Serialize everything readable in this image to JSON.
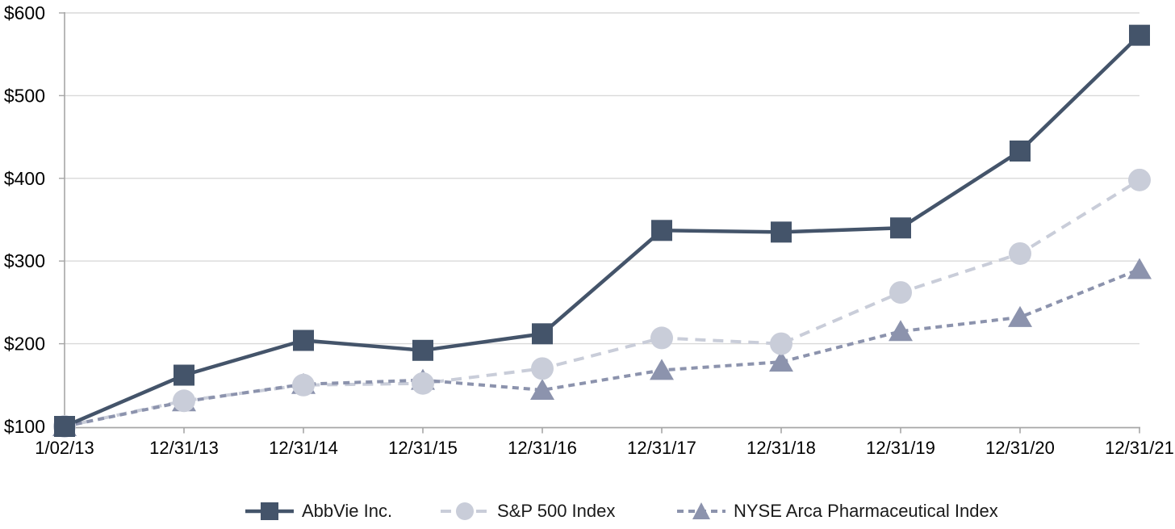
{
  "chart_data": {
    "type": "line",
    "title": "",
    "xlabel": "",
    "ylabel": "",
    "categories": [
      "1/02/13",
      "12/31/13",
      "12/31/14",
      "12/31/15",
      "12/31/16",
      "12/31/17",
      "12/31/18",
      "12/31/19",
      "12/31/20",
      "12/31/21"
    ],
    "series": [
      {
        "name": "AbbVie Inc.",
        "marker": "square",
        "line_style": "solid",
        "color": "#44546A",
        "values": [
          100,
          162,
          204,
          192,
          212,
          337,
          335,
          340,
          433,
          573
        ]
      },
      {
        "name": "S&P 500 Index",
        "marker": "circle",
        "line_style": "long-dash",
        "color": "#C9CDD9",
        "values": [
          100,
          131,
          150,
          152,
          170,
          207,
          200,
          262,
          309,
          398
        ]
      },
      {
        "name": "NYSE Arca Pharmaceutical Index",
        "marker": "triangle",
        "line_style": "short-dash",
        "color": "#8C93AD",
        "values": [
          100,
          130,
          151,
          156,
          144,
          168,
          178,
          215,
          232,
          290
        ]
      }
    ],
    "ylim": [
      100,
      600
    ],
    "yticks": [
      100,
      200,
      300,
      400,
      500,
      600
    ],
    "ytick_prefix": "$",
    "grid": "horizontal",
    "legend_position": "bottom",
    "colors": {
      "gridline": "#D9D9D9",
      "axis": "#A6A6A6",
      "tick_label": "#000000",
      "legend_text": "#1A1A1A",
      "background": "#FFFFFF"
    }
  }
}
